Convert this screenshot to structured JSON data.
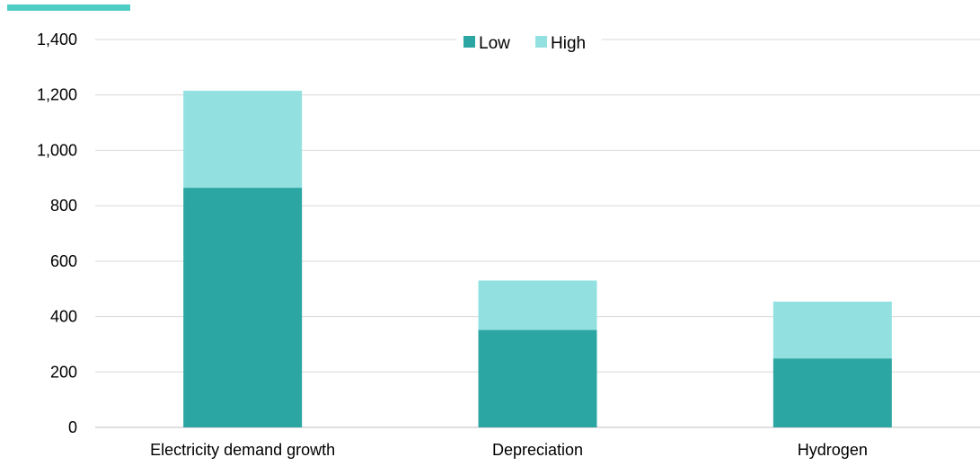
{
  "accent_color": "#4ECDC4",
  "chart_data": {
    "type": "bar",
    "stacked": true,
    "categories": [
      "Electricity demand growth",
      "Depreciation",
      "Hydrogen"
    ],
    "series": [
      {
        "name": "Low",
        "values": [
          865,
          352,
          249
        ],
        "color": "#2BA6A2"
      },
      {
        "name": "High",
        "values": [
          350,
          178,
          205
        ],
        "color": "#92E1E0"
      }
    ],
    "ylim": [
      0,
      1400
    ],
    "yticks": [
      0,
      200,
      400,
      600,
      800,
      1000,
      1200,
      1400
    ],
    "ytick_labels": [
      "0",
      "200",
      "400",
      "600",
      "800",
      "1,000",
      "1,200",
      "1,400"
    ],
    "title": "",
    "xlabel": "",
    "ylabel": "",
    "grid": true,
    "legend_position": "top-center"
  }
}
